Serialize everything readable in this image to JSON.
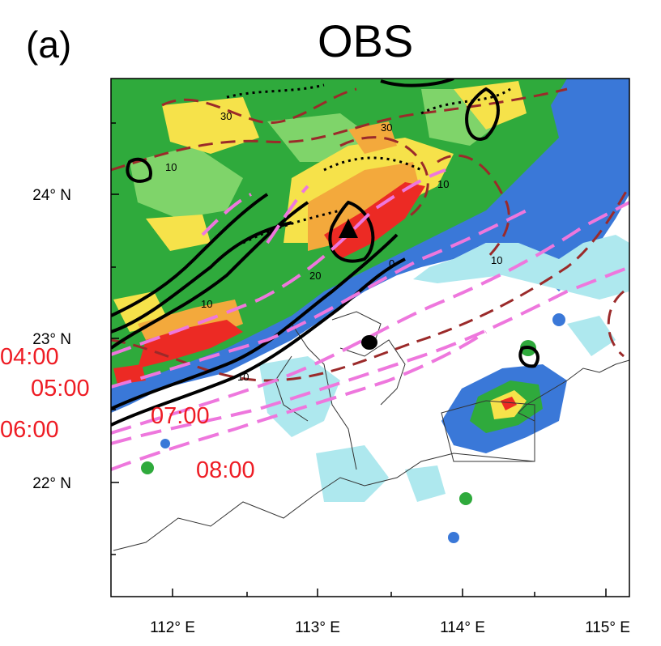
{
  "panel_label": "(a)",
  "title": "OBS",
  "x_ticks": [
    "112° E",
    "113° E",
    "114° E",
    "115° E"
  ],
  "y_ticks": [
    "24° N",
    "23° N",
    "22° N"
  ],
  "time_labels": [
    "04:00",
    "05:00",
    "06:00",
    "07:00",
    "08:00"
  ],
  "contour_labels": [
    "30",
    "10",
    "30",
    "10",
    "10",
    "0",
    "20",
    "10",
    "10"
  ],
  "colors": {
    "rain_light": "#aee8ee",
    "rain_blue": "#3a78d8",
    "rain_green": "#2faa3c",
    "rain_lightgreen": "#7fd46a",
    "rain_yellow": "#f6e24a",
    "rain_orange": "#f3a93c",
    "rain_red": "#ec2a24",
    "dashed_contour": "#9b2a2a",
    "time_line": "#ee77dd",
    "time_label": "#ee1c24"
  }
}
